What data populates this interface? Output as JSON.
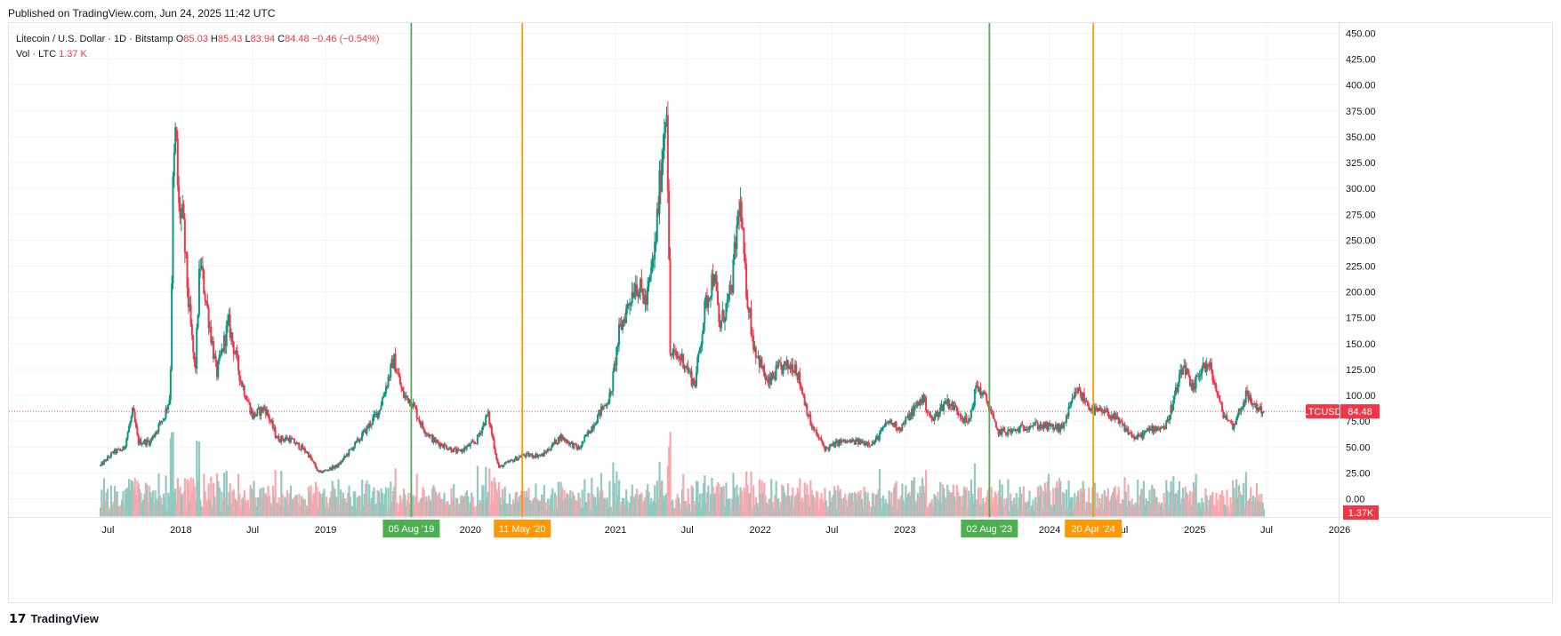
{
  "published": "Published on TradingView.com, Jun 24, 2025 11:42 UTC",
  "legend": {
    "symbol": "Litecoin / U.S. Dollar · 1D · Bitstamp",
    "o_label": "O",
    "o_value": "85.03",
    "h_label": "H",
    "h_value": "85.43",
    "l_label": "L",
    "l_value": "83.94",
    "c_label": "C",
    "c_value": "84.48",
    "change": "−0.46 (−0.54%)",
    "vol_label": "Vol · LTC",
    "vol_value": "1.37 K"
  },
  "brand": "TradingView",
  "colors": {
    "up": "#089981",
    "down": "#f23645",
    "vol_up": "#8fc9bf",
    "vol_down": "#f7a8ae",
    "green_line": "#4caf50",
    "orange_line": "#ff9800"
  },
  "chart_data": {
    "type": "candlestick",
    "symbol": "LTCUSD",
    "interval": "1D",
    "ylim": [
      0,
      460
    ],
    "y_ticks": [
      "450.00",
      "425.00",
      "400.00",
      "375.00",
      "350.00",
      "325.00",
      "300.00",
      "275.00",
      "250.00",
      "225.00",
      "200.00",
      "175.00",
      "150.00",
      "125.00",
      "100.00",
      "75.00",
      "50.00",
      "25.00",
      "0.00"
    ],
    "x_ticks": [
      {
        "label": "Jul",
        "date": "2017-07-01"
      },
      {
        "label": "2018",
        "date": "2018-01-01"
      },
      {
        "label": "Jul",
        "date": "2018-07-01"
      },
      {
        "label": "2019",
        "date": "2019-01-01"
      },
      {
        "label": "2020",
        "date": "2020-01-01"
      },
      {
        "label": "2021",
        "date": "2021-01-01"
      },
      {
        "label": "Jul",
        "date": "2021-07-01"
      },
      {
        "label": "2022",
        "date": "2022-01-01"
      },
      {
        "label": "Jul",
        "date": "2022-07-01"
      },
      {
        "label": "2023",
        "date": "2023-01-01"
      },
      {
        "label": "2024",
        "date": "2024-01-01"
      },
      {
        "label": "Jul",
        "date": "2024-07-01"
      },
      {
        "label": "2025",
        "date": "2025-01-01"
      },
      {
        "label": "Jul",
        "date": "2025-07-01"
      },
      {
        "label": "2026",
        "date": "2026-01-01"
      }
    ],
    "current_price": {
      "label": "LTCUSD",
      "value": "84.48",
      "y": 84.48
    },
    "current_volume": {
      "value": "1.37K"
    },
    "vertical_markers": [
      {
        "label": "05 Aug '19",
        "date": "2019-08-05",
        "color": "green"
      },
      {
        "label": "11 May '20",
        "date": "2020-05-11",
        "color": "orange"
      },
      {
        "label": "02 Aug '23",
        "date": "2023-08-02",
        "color": "green"
      },
      {
        "label": "20 Apr '24",
        "date": "2024-04-20",
        "color": "orange"
      }
    ],
    "price_path": [
      [
        "2017-06-12",
        32
      ],
      [
        "2017-07-15",
        45
      ],
      [
        "2017-08-10",
        48
      ],
      [
        "2017-09-02",
        85
      ],
      [
        "2017-09-15",
        55
      ],
      [
        "2017-10-15",
        55
      ],
      [
        "2017-11-20",
        80
      ],
      [
        "2017-12-05",
        100
      ],
      [
        "2017-12-12",
        300
      ],
      [
        "2017-12-19",
        360
      ],
      [
        "2017-12-26",
        280
      ],
      [
        "2018-01-06",
        270
      ],
      [
        "2018-01-20",
        190
      ],
      [
        "2018-02-06",
        120
      ],
      [
        "2018-02-18",
        230
      ],
      [
        "2018-03-10",
        180
      ],
      [
        "2018-04-01",
        120
      ],
      [
        "2018-05-01",
        170
      ],
      [
        "2018-06-01",
        115
      ],
      [
        "2018-07-01",
        80
      ],
      [
        "2018-08-01",
        88
      ],
      [
        "2018-09-01",
        58
      ],
      [
        "2018-10-01",
        58
      ],
      [
        "2018-11-15",
        45
      ],
      [
        "2018-12-15",
        25
      ],
      [
        "2019-02-01",
        32
      ],
      [
        "2019-04-01",
        60
      ],
      [
        "2019-05-15",
        85
      ],
      [
        "2019-06-22",
        135
      ],
      [
        "2019-07-15",
        100
      ],
      [
        "2019-08-05",
        95
      ],
      [
        "2019-09-01",
        70
      ],
      [
        "2019-10-01",
        56
      ],
      [
        "2019-12-01",
        45
      ],
      [
        "2020-01-15",
        55
      ],
      [
        "2020-02-14",
        82
      ],
      [
        "2020-03-12",
        30
      ],
      [
        "2020-05-11",
        42
      ],
      [
        "2020-07-01",
        42
      ],
      [
        "2020-08-15",
        60
      ],
      [
        "2020-10-01",
        48
      ],
      [
        "2020-11-25",
        85
      ],
      [
        "2020-12-20",
        100
      ],
      [
        "2021-01-10",
        160
      ],
      [
        "2021-02-20",
        210
      ],
      [
        "2021-03-20",
        190
      ],
      [
        "2021-04-10",
        240
      ],
      [
        "2021-05-10",
        390
      ],
      [
        "2021-05-19",
        140
      ],
      [
        "2021-06-20",
        135
      ],
      [
        "2021-07-20",
        110
      ],
      [
        "2021-08-15",
        185
      ],
      [
        "2021-09-07",
        220
      ],
      [
        "2021-09-20",
        165
      ],
      [
        "2021-10-20",
        200
      ],
      [
        "2021-11-10",
        290
      ],
      [
        "2021-11-25",
        210
      ],
      [
        "2021-12-15",
        150
      ],
      [
        "2022-01-20",
        110
      ],
      [
        "2022-02-15",
        125
      ],
      [
        "2022-03-30",
        130
      ],
      [
        "2022-05-10",
        70
      ],
      [
        "2022-06-15",
        48
      ],
      [
        "2022-07-20",
        55
      ],
      [
        "2022-09-01",
        55
      ],
      [
        "2022-10-15",
        54
      ],
      [
        "2022-11-20",
        75
      ],
      [
        "2022-12-20",
        68
      ],
      [
        "2023-02-15",
        98
      ],
      [
        "2023-03-10",
        75
      ],
      [
        "2023-04-15",
        95
      ],
      [
        "2023-05-15",
        85
      ],
      [
        "2023-06-10",
        72
      ],
      [
        "2023-07-01",
        110
      ],
      [
        "2023-08-02",
        90
      ],
      [
        "2023-08-20",
        65
      ],
      [
        "2023-10-01",
        65
      ],
      [
        "2023-11-15",
        72
      ],
      [
        "2023-12-15",
        70
      ],
      [
        "2024-02-01",
        68
      ],
      [
        "2024-03-10",
        105
      ],
      [
        "2024-04-20",
        85
      ],
      [
        "2024-06-01",
        82
      ],
      [
        "2024-08-05",
        58
      ],
      [
        "2024-09-15",
        68
      ],
      [
        "2024-10-20",
        70
      ],
      [
        "2024-11-20",
        110
      ],
      [
        "2024-12-05",
        130
      ],
      [
        "2024-12-25",
        102
      ],
      [
        "2025-01-20",
        130
      ],
      [
        "2025-02-10",
        125
      ],
      [
        "2025-03-10",
        85
      ],
      [
        "2025-04-07",
        70
      ],
      [
        "2025-05-10",
        100
      ],
      [
        "2025-06-01",
        90
      ],
      [
        "2025-06-24",
        84.48
      ]
    ]
  }
}
